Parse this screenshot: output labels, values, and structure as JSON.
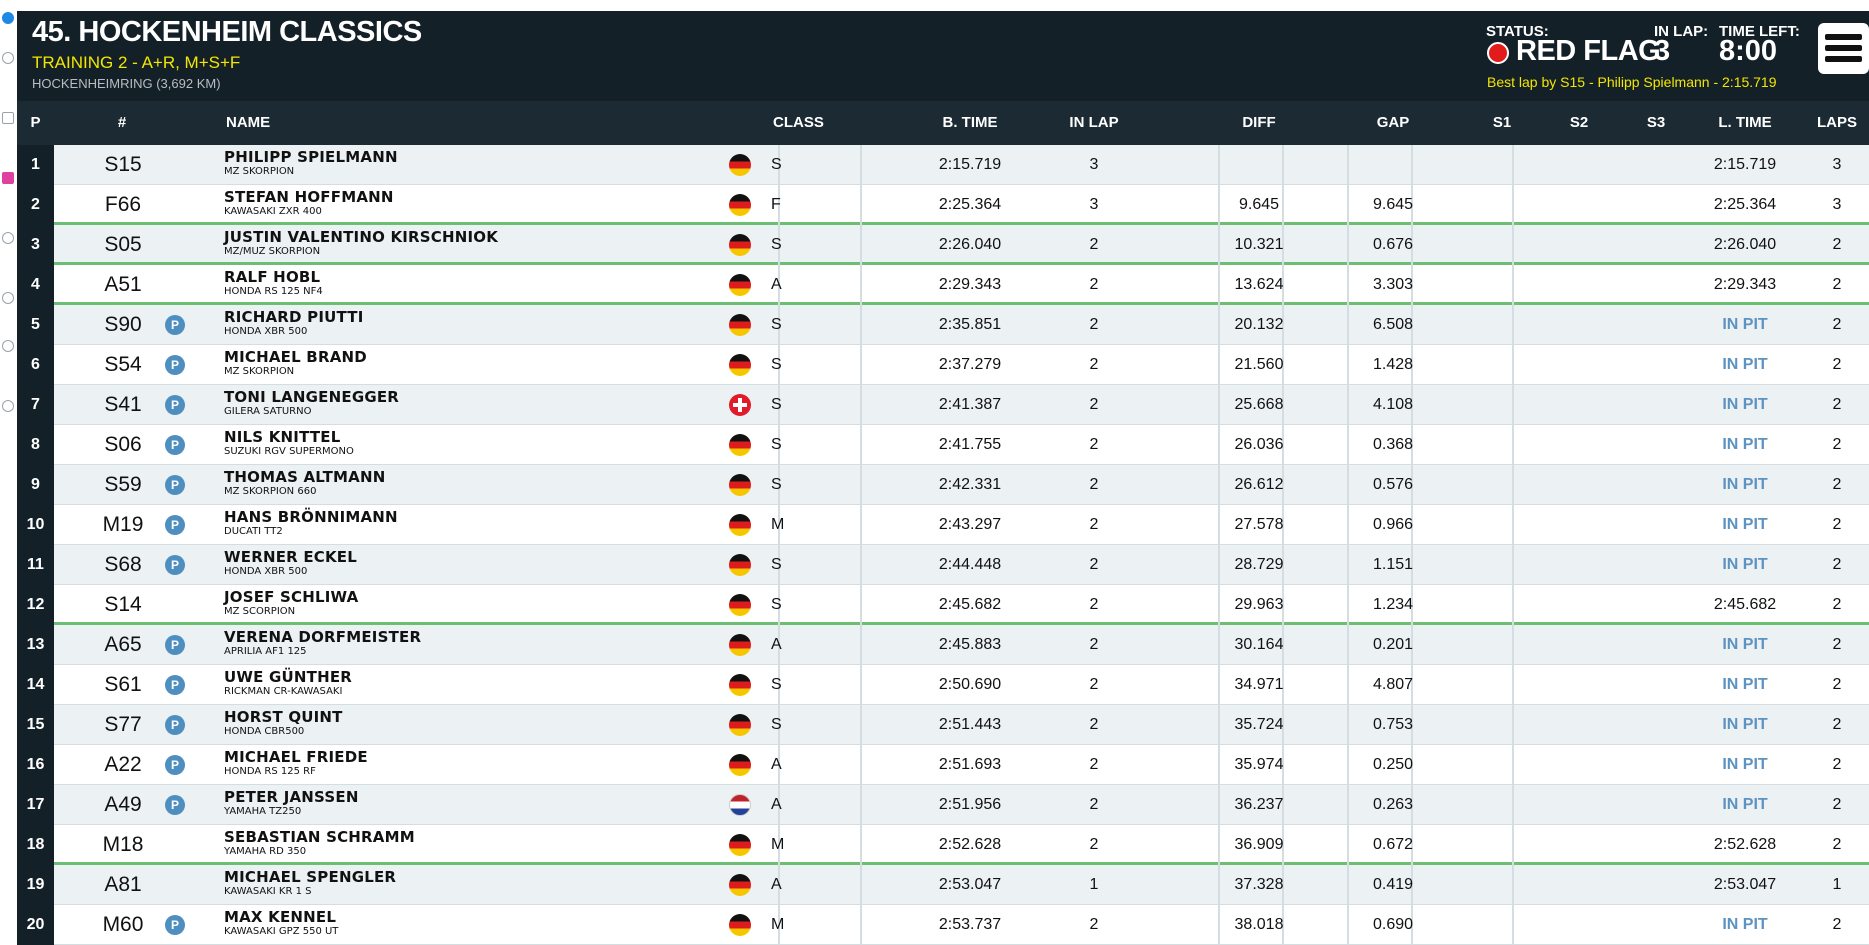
{
  "header": {
    "title": "45. HOCKENHEIM CLASSICS",
    "session": "TRAINING 2 - A+R, M+S+F",
    "track": "HOCKENHEIMRING (3,692 KM)",
    "status_label": "STATUS:",
    "status_value": "RED FLAG",
    "inlap_label": "IN LAP:",
    "inlap_value": "3",
    "timeleft_label": "TIME LEFT:",
    "timeleft_value": "8:00",
    "best_lap": "Best lap by S15 - Philipp Spielmann - 2:15.719",
    "menu_icon": "hamburger-menu-icon"
  },
  "columns": {
    "p": "P",
    "num": "#",
    "name": "NAME",
    "class": "CLASS",
    "btime": "B. TIME",
    "inlap": "IN LAP",
    "diff": "DIFF",
    "gap": "GAP",
    "s1": "S1",
    "s2": "S2",
    "s3": "S3",
    "ltime": "L. TIME",
    "laps": "LAPS"
  },
  "colors": {
    "header_bg": "#142027",
    "yellow": "#f3e600",
    "red_flag": "#e21b1b",
    "pit_blue": "#4f8fbf",
    "separator_green": "#6abf73"
  },
  "rows": [
    {
      "p": "1",
      "num": "S15",
      "pit": "",
      "name": "PHILIPP SPIELMANN",
      "bike": "MZ SKORPION",
      "flag": "de",
      "cls": "S",
      "btime": "2:15.719",
      "inlap": "3",
      "diff": "",
      "gap": "",
      "ltime": "2:15.719",
      "laps": "3"
    },
    {
      "p": "2",
      "num": "F66",
      "pit": "",
      "name": "STEFAN HOFFMANN",
      "bike": "KAWASAKI ZXR 400",
      "flag": "de",
      "cls": "F",
      "btime": "2:25.364",
      "inlap": "3",
      "diff": "9.645",
      "gap": "9.645",
      "ltime": "2:25.364",
      "laps": "3"
    },
    {
      "p": "3",
      "num": "S05",
      "pit": "",
      "name": "JUSTIN VALENTINO KIRSCHNIOK",
      "bike": "MZ/MUZ SKORPION",
      "flag": "de",
      "cls": "S",
      "btime": "2:26.040",
      "inlap": "2",
      "diff": "10.321",
      "gap": "0.676",
      "ltime": "2:26.040",
      "laps": "2"
    },
    {
      "p": "4",
      "num": "A51",
      "pit": "",
      "name": "RALF HOBL",
      "bike": "HONDA RS 125 NF4",
      "flag": "de",
      "cls": "A",
      "btime": "2:29.343",
      "inlap": "2",
      "diff": "13.624",
      "gap": "3.303",
      "ltime": "2:29.343",
      "laps": "2"
    },
    {
      "p": "5",
      "num": "S90",
      "pit": "P",
      "name": "RICHARD PIUTTI",
      "bike": "HONDA XBR 500",
      "flag": "de",
      "cls": "S",
      "btime": "2:35.851",
      "inlap": "2",
      "diff": "20.132",
      "gap": "6.508",
      "ltime": "IN PIT",
      "laps": "2"
    },
    {
      "p": "6",
      "num": "S54",
      "pit": "P",
      "name": "MICHAEL BRAND",
      "bike": "MZ SKORPION",
      "flag": "de",
      "cls": "S",
      "btime": "2:37.279",
      "inlap": "2",
      "diff": "21.560",
      "gap": "1.428",
      "ltime": "IN PIT",
      "laps": "2"
    },
    {
      "p": "7",
      "num": "S41",
      "pit": "P",
      "name": "TONI LANGENEGGER",
      "bike": "GILERA SATURNO",
      "flag": "ch",
      "cls": "S",
      "btime": "2:41.387",
      "inlap": "2",
      "diff": "25.668",
      "gap": "4.108",
      "ltime": "IN PIT",
      "laps": "2"
    },
    {
      "p": "8",
      "num": "S06",
      "pit": "P",
      "name": "NILS KNITTEL",
      "bike": "SUZUKI RGV SUPERMONO",
      "flag": "de",
      "cls": "S",
      "btime": "2:41.755",
      "inlap": "2",
      "diff": "26.036",
      "gap": "0.368",
      "ltime": "IN PIT",
      "laps": "2"
    },
    {
      "p": "9",
      "num": "S59",
      "pit": "P",
      "name": "THOMAS ALTMANN",
      "bike": "MZ SKORPION 660",
      "flag": "de",
      "cls": "S",
      "btime": "2:42.331",
      "inlap": "2",
      "diff": "26.612",
      "gap": "0.576",
      "ltime": "IN PIT",
      "laps": "2"
    },
    {
      "p": "10",
      "num": "M19",
      "pit": "P",
      "name": "HANS BRÖNNIMANN",
      "bike": "DUCATI TT2",
      "flag": "de",
      "cls": "M",
      "btime": "2:43.297",
      "inlap": "2",
      "diff": "27.578",
      "gap": "0.966",
      "ltime": "IN PIT",
      "laps": "2"
    },
    {
      "p": "11",
      "num": "S68",
      "pit": "P",
      "name": "WERNER ECKEL",
      "bike": "HONDA XBR 500",
      "flag": "de",
      "cls": "S",
      "btime": "2:44.448",
      "inlap": "2",
      "diff": "28.729",
      "gap": "1.151",
      "ltime": "IN PIT",
      "laps": "2"
    },
    {
      "p": "12",
      "num": "S14",
      "pit": "",
      "name": "JOSEF SCHLIWA",
      "bike": "MZ SCORPION",
      "flag": "de",
      "cls": "S",
      "btime": "2:45.682",
      "inlap": "2",
      "diff": "29.963",
      "gap": "1.234",
      "ltime": "2:45.682",
      "laps": "2"
    },
    {
      "p": "13",
      "num": "A65",
      "pit": "P",
      "name": "VERENA DORFMEISTER",
      "bike": "APRILIA AF1 125",
      "flag": "de",
      "cls": "A",
      "btime": "2:45.883",
      "inlap": "2",
      "diff": "30.164",
      "gap": "0.201",
      "ltime": "IN PIT",
      "laps": "2"
    },
    {
      "p": "14",
      "num": "S61",
      "pit": "P",
      "name": "UWE GÜNTHER",
      "bike": "RICKMAN CR-KAWASAKI",
      "flag": "de",
      "cls": "S",
      "btime": "2:50.690",
      "inlap": "2",
      "diff": "34.971",
      "gap": "4.807",
      "ltime": "IN PIT",
      "laps": "2"
    },
    {
      "p": "15",
      "num": "S77",
      "pit": "P",
      "name": "HORST QUINT",
      "bike": "HONDA CBR500",
      "flag": "de",
      "cls": "S",
      "btime": "2:51.443",
      "inlap": "2",
      "diff": "35.724",
      "gap": "0.753",
      "ltime": "IN PIT",
      "laps": "2"
    },
    {
      "p": "16",
      "num": "A22",
      "pit": "P",
      "name": "MICHAEL FRIEDE",
      "bike": "HONDA RS 125 RF",
      "flag": "de",
      "cls": "A",
      "btime": "2:51.693",
      "inlap": "2",
      "diff": "35.974",
      "gap": "0.250",
      "ltime": "IN PIT",
      "laps": "2"
    },
    {
      "p": "17",
      "num": "A49",
      "pit": "P",
      "name": "PETER JANSSEN",
      "bike": "YAMAHA TZ250",
      "flag": "nl",
      "cls": "A",
      "btime": "2:51.956",
      "inlap": "2",
      "diff": "36.237",
      "gap": "0.263",
      "ltime": "IN PIT",
      "laps": "2"
    },
    {
      "p": "18",
      "num": "M18",
      "pit": "",
      "name": "SEBASTIAN SCHRAMM",
      "bike": "YAMAHA RD 350",
      "flag": "de",
      "cls": "M",
      "btime": "2:52.628",
      "inlap": "2",
      "diff": "36.909",
      "gap": "0.672",
      "ltime": "2:52.628",
      "laps": "2"
    },
    {
      "p": "19",
      "num": "A81",
      "pit": "",
      "name": "MICHAEL SPENGLER",
      "bike": "KAWASAKI KR 1 S",
      "flag": "de",
      "cls": "A",
      "btime": "2:53.047",
      "inlap": "1",
      "diff": "37.328",
      "gap": "0.419",
      "ltime": "2:53.047",
      "laps": "1"
    },
    {
      "p": "20",
      "num": "M60",
      "pit": "P",
      "name": "MAX KENNEL",
      "bike": "KAWASAKI GPZ 550 UT",
      "flag": "de",
      "cls": "M",
      "btime": "2:53.737",
      "inlap": "2",
      "diff": "38.018",
      "gap": "0.690",
      "ltime": "IN PIT",
      "laps": "2"
    }
  ]
}
